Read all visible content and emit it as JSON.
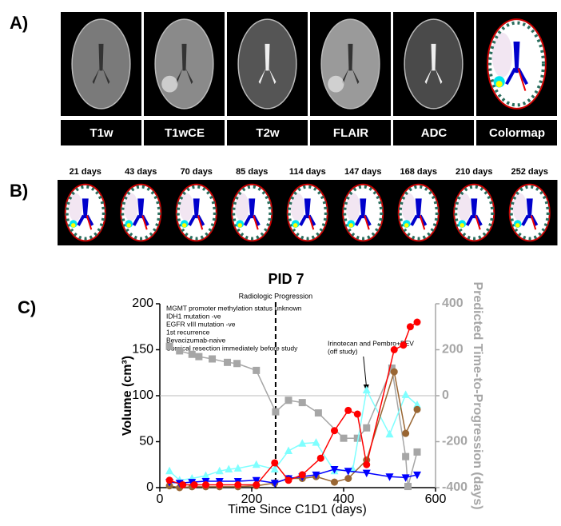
{
  "panels": {
    "A": {
      "label": "A)",
      "images": [
        "T1w",
        "T1wCE",
        "T2w",
        "FLAIR",
        "ADC",
        "Colormap"
      ]
    },
    "B": {
      "label": "B)",
      "images": [
        "21 days",
        "43 days",
        "70 days",
        "85 days",
        "114 days",
        "147 days",
        "168 days",
        "210 days",
        "252 days"
      ]
    },
    "C": {
      "label": "C)"
    }
  },
  "chart_data": {
    "type": "line",
    "title": "PID 7",
    "xlabel": "Time Since C1D1 (days)",
    "ylabel": "Volume (cm³)",
    "y2label": "Predicted Time-to-Progression (days)",
    "xlim": [
      0,
      600
    ],
    "xticks": [
      0,
      200,
      400,
      600
    ],
    "ylim": [
      0,
      200
    ],
    "yticks": [
      0,
      50,
      100,
      150,
      200
    ],
    "y2lim": [
      -400,
      400
    ],
    "y2ticks": [
      400,
      200,
      0,
      -200,
      -400
    ],
    "y2_zero_line": true,
    "notes": [
      "MGMT promoter methylation status unknown",
      "IDH1 mutation -ve",
      "EGFR vIII mutation -ve",
      "1st recurrence",
      "Bevacizumab-naive",
      "Surgical resection immediately before study"
    ],
    "progression": {
      "text": "Radiologic Progression",
      "x": 252
    },
    "treatment": {
      "text": [
        "Irinotecan and Pembro+BEV",
        "(off study)"
      ],
      "x": 450
    },
    "series": [
      {
        "color": "#a6a6a6",
        "marker": "square",
        "axis": "y2",
        "x": [
          21,
          43,
          70,
          85,
          114,
          147,
          168,
          210,
          252,
          280,
          310,
          345,
          400,
          430,
          450,
          505,
          535,
          540,
          560
        ],
        "values": [
          215,
          195,
          180,
          170,
          160,
          145,
          140,
          110,
          -70,
          -20,
          -30,
          -75,
          -185,
          -185,
          -140,
          120,
          -265,
          -395,
          -245
        ]
      },
      {
        "color": "#7fffff",
        "marker": "triangle",
        "x": [
          21,
          43,
          70,
          100,
          130,
          150,
          170,
          210,
          250,
          280,
          310,
          340,
          380,
          420,
          450,
          500,
          535,
          560
        ],
        "values": [
          18,
          8,
          10,
          13,
          18,
          20,
          21,
          25,
          20,
          40,
          48,
          49,
          18,
          20,
          106,
          58,
          101,
          90
        ]
      },
      {
        "color": "#996633",
        "marker": "circle",
        "x": [
          21,
          43,
          70,
          100,
          130,
          170,
          210,
          250,
          280,
          310,
          340,
          380,
          410,
          450,
          510,
          535,
          560
        ],
        "values": [
          2,
          0,
          1,
          1,
          1,
          1,
          2,
          5,
          10,
          10,
          12,
          6,
          10,
          30,
          126,
          59,
          85
        ]
      },
      {
        "color": "#0000ff",
        "marker": "down",
        "x": [
          21,
          43,
          70,
          100,
          130,
          170,
          210,
          250,
          280,
          310,
          340,
          380,
          410,
          450,
          500,
          535,
          560
        ],
        "values": [
          6,
          5,
          6,
          7,
          7,
          7,
          8,
          5,
          10,
          12,
          14,
          20,
          18,
          16,
          12,
          11,
          14
        ]
      },
      {
        "color": "#ff0000",
        "marker": "circle",
        "x": [
          21,
          50,
          75,
          100,
          130,
          170,
          210,
          250,
          280,
          310,
          350,
          380,
          410,
          430,
          450,
          510,
          530,
          545,
          560
        ],
        "values": [
          8,
          3,
          3,
          3,
          3,
          3,
          3,
          27,
          8,
          14,
          32,
          62,
          84,
          80,
          25,
          150,
          155,
          175,
          180
        ]
      }
    ]
  }
}
